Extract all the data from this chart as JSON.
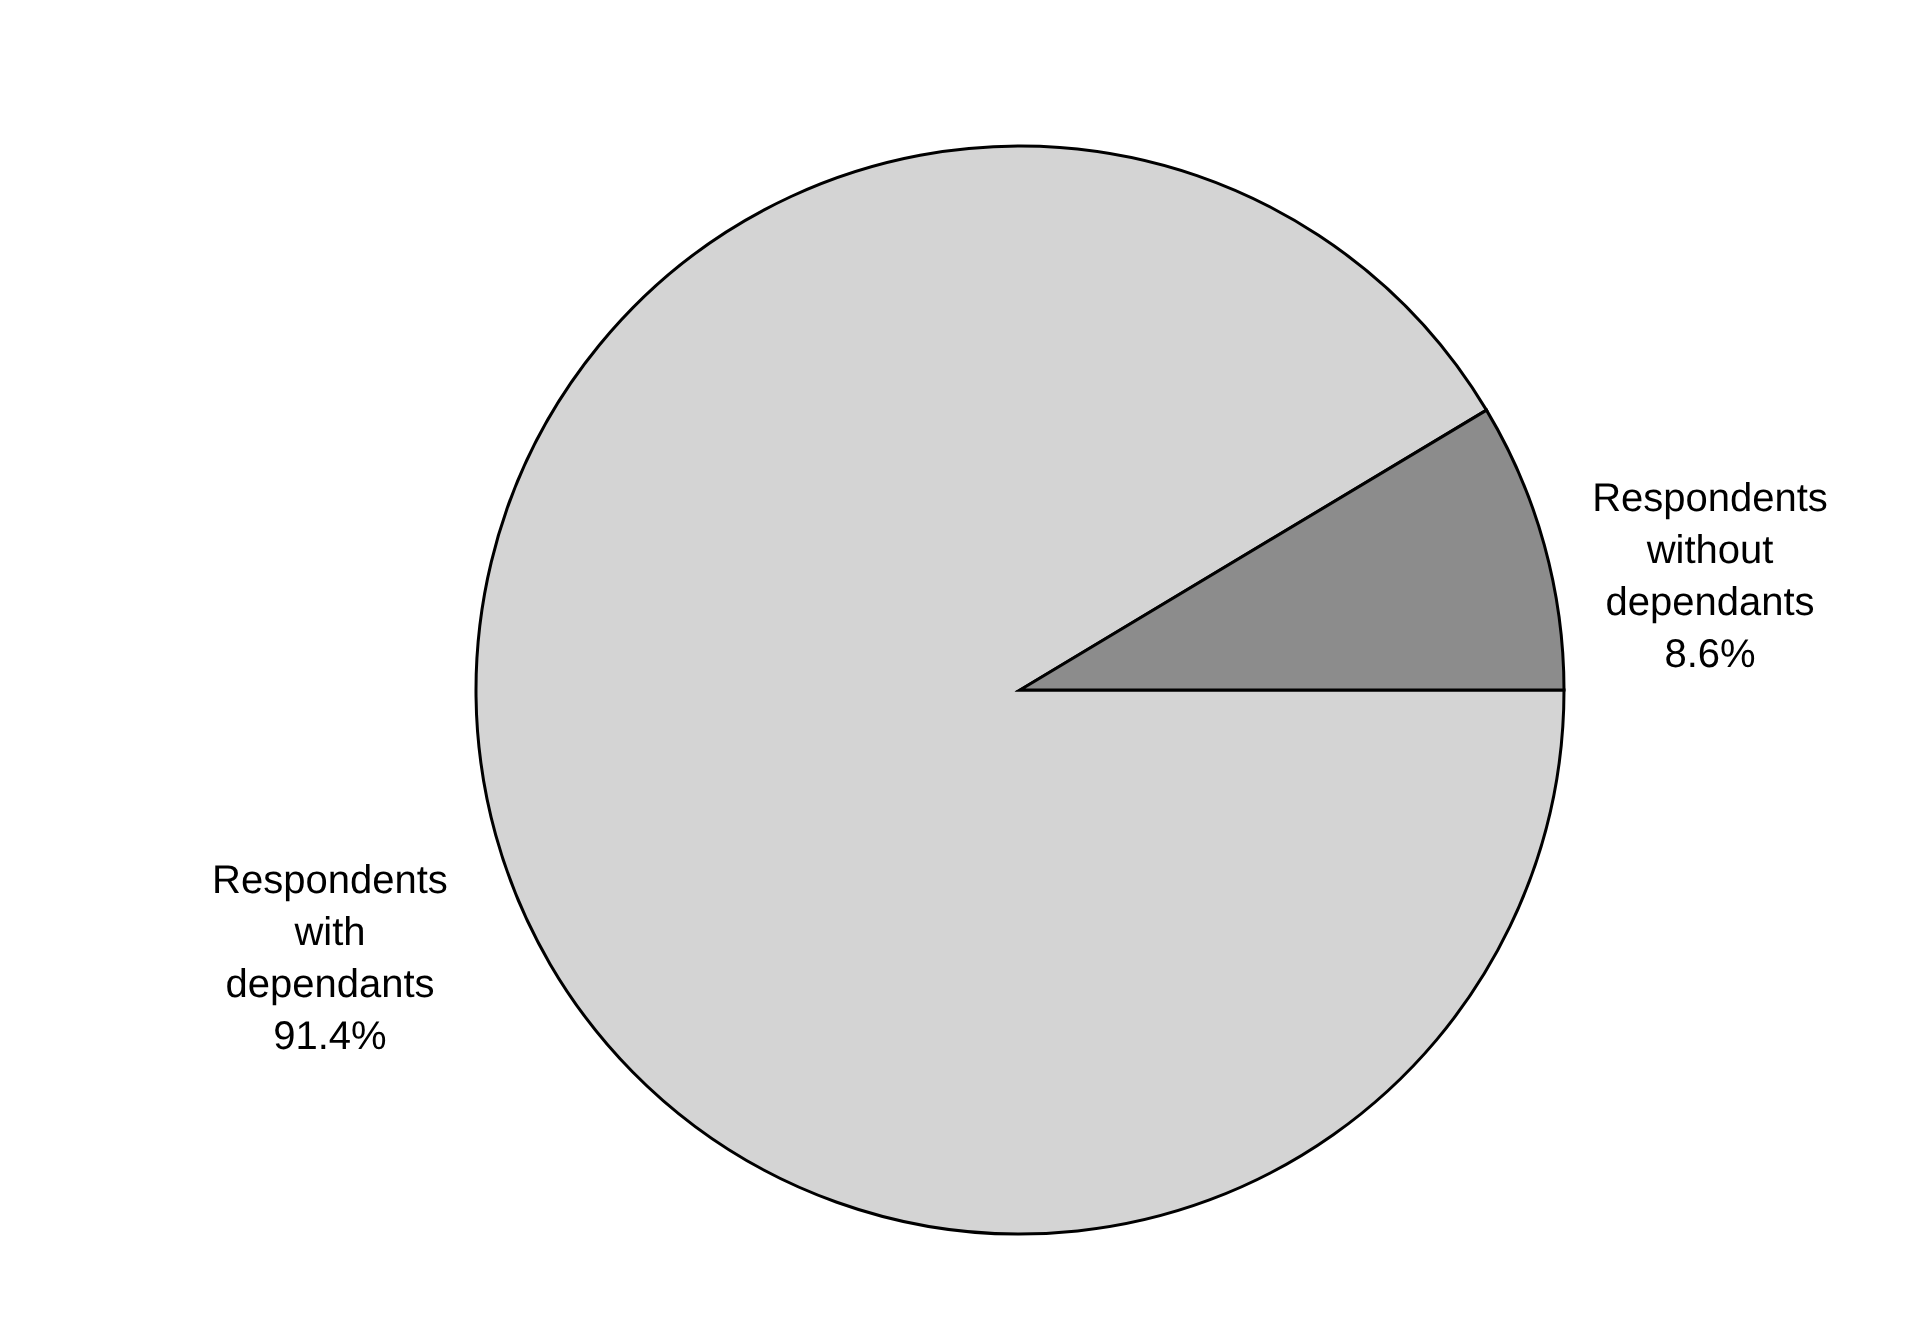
{
  "chart_data": {
    "type": "pie",
    "categories": [
      "Respondents with dependants",
      "Respondents without dependants"
    ],
    "values": [
      91.4,
      8.6
    ],
    "colors": [
      "#d4d4d4",
      "#8c8c8c"
    ],
    "value_labels": [
      "91.4%",
      "8.6%"
    ]
  }
}
